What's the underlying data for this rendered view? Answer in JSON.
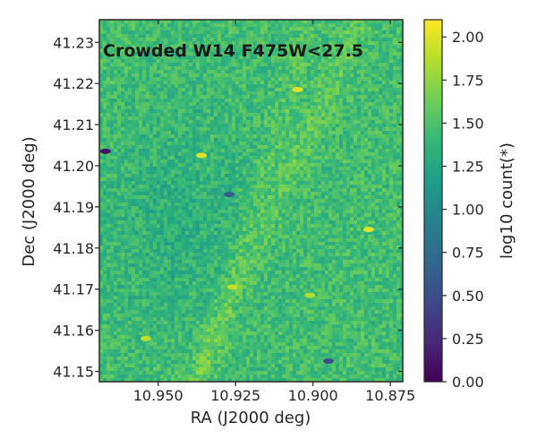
{
  "chart_data": {
    "type": "heatmap",
    "title": "Crowded W14 F475W<27.5",
    "xlabel": "RA (J2000 deg)",
    "ylabel": "Dec (J2000 deg)",
    "colorbar_label": "log10 count(*)",
    "colormap": "viridis",
    "xlim": [
      10.969,
      10.871
    ],
    "ylim": [
      41.1475,
      41.2355
    ],
    "x_ticks": [
      10.95,
      10.925,
      10.9,
      10.875
    ],
    "x_tick_labels": [
      "10.950",
      "10.925",
      "10.900",
      "10.875"
    ],
    "y_ticks": [
      41.15,
      41.16,
      41.17,
      41.18,
      41.19,
      41.2,
      41.21,
      41.22,
      41.23
    ],
    "y_tick_labels": [
      "41.15",
      "41.16",
      "41.17",
      "41.18",
      "41.19",
      "41.20",
      "41.21",
      "41.22",
      "41.23"
    ],
    "colorbar_range": [
      0.0,
      2.1
    ],
    "colorbar_ticks": [
      0.0,
      0.25,
      0.5,
      0.75,
      1.0,
      1.25,
      1.5,
      1.75,
      2.0
    ],
    "colorbar_tick_labels": [
      "0.00",
      "0.25",
      "0.50",
      "0.75",
      "1.00",
      "1.25",
      "1.50",
      "1.75",
      "2.00"
    ],
    "typical_value": 1.45,
    "grid": false,
    "hot_spots": [
      {
        "ra": 10.905,
        "dec": 41.2185,
        "value": 2.0
      },
      {
        "ra": 10.936,
        "dec": 41.2025,
        "value": 2.0
      },
      {
        "ra": 10.882,
        "dec": 41.1845,
        "value": 2.0
      },
      {
        "ra": 10.926,
        "dec": 41.1705,
        "value": 1.9
      },
      {
        "ra": 10.954,
        "dec": 41.158,
        "value": 1.9
      },
      {
        "ra": 10.901,
        "dec": 41.1685,
        "value": 1.85
      }
    ],
    "cold_spots": [
      {
        "ra": 10.967,
        "dec": 41.2035,
        "value": 0.1
      },
      {
        "ra": 10.927,
        "dec": 41.193,
        "value": 0.6
      },
      {
        "ra": 10.895,
        "dec": 41.1525,
        "value": 0.5
      }
    ]
  }
}
